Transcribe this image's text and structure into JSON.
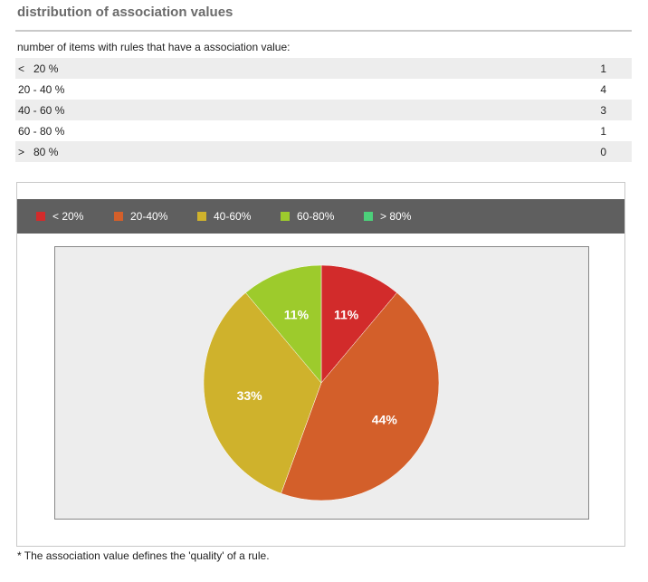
{
  "heading": "distribution of association values",
  "intro": "number of items with rules that have a association value:",
  "rows": [
    {
      "range": "<   20 %",
      "count": "1"
    },
    {
      "range": "20 - 40 %",
      "count": "4"
    },
    {
      "range": "40 - 60 %",
      "count": "3"
    },
    {
      "range": "60 - 80 %",
      "count": "1"
    },
    {
      "range": ">   80 %",
      "count": "0"
    }
  ],
  "footnote": "* The association value defines the 'quality' of a rule.",
  "chart_data": {
    "type": "pie",
    "categories": [
      "< 20%",
      "20-40%",
      "40-60%",
      "60-80%",
      "> 80%"
    ],
    "values": [
      1,
      4,
      3,
      1,
      0
    ],
    "data_labels": [
      "11%",
      "44%",
      "33%",
      "11%",
      ""
    ],
    "colors": [
      "#d22b2b",
      "#d35f2a",
      "#cfb22c",
      "#9dcb2c",
      "#4cd07a"
    ],
    "legend_position": "top",
    "grid": false
  }
}
